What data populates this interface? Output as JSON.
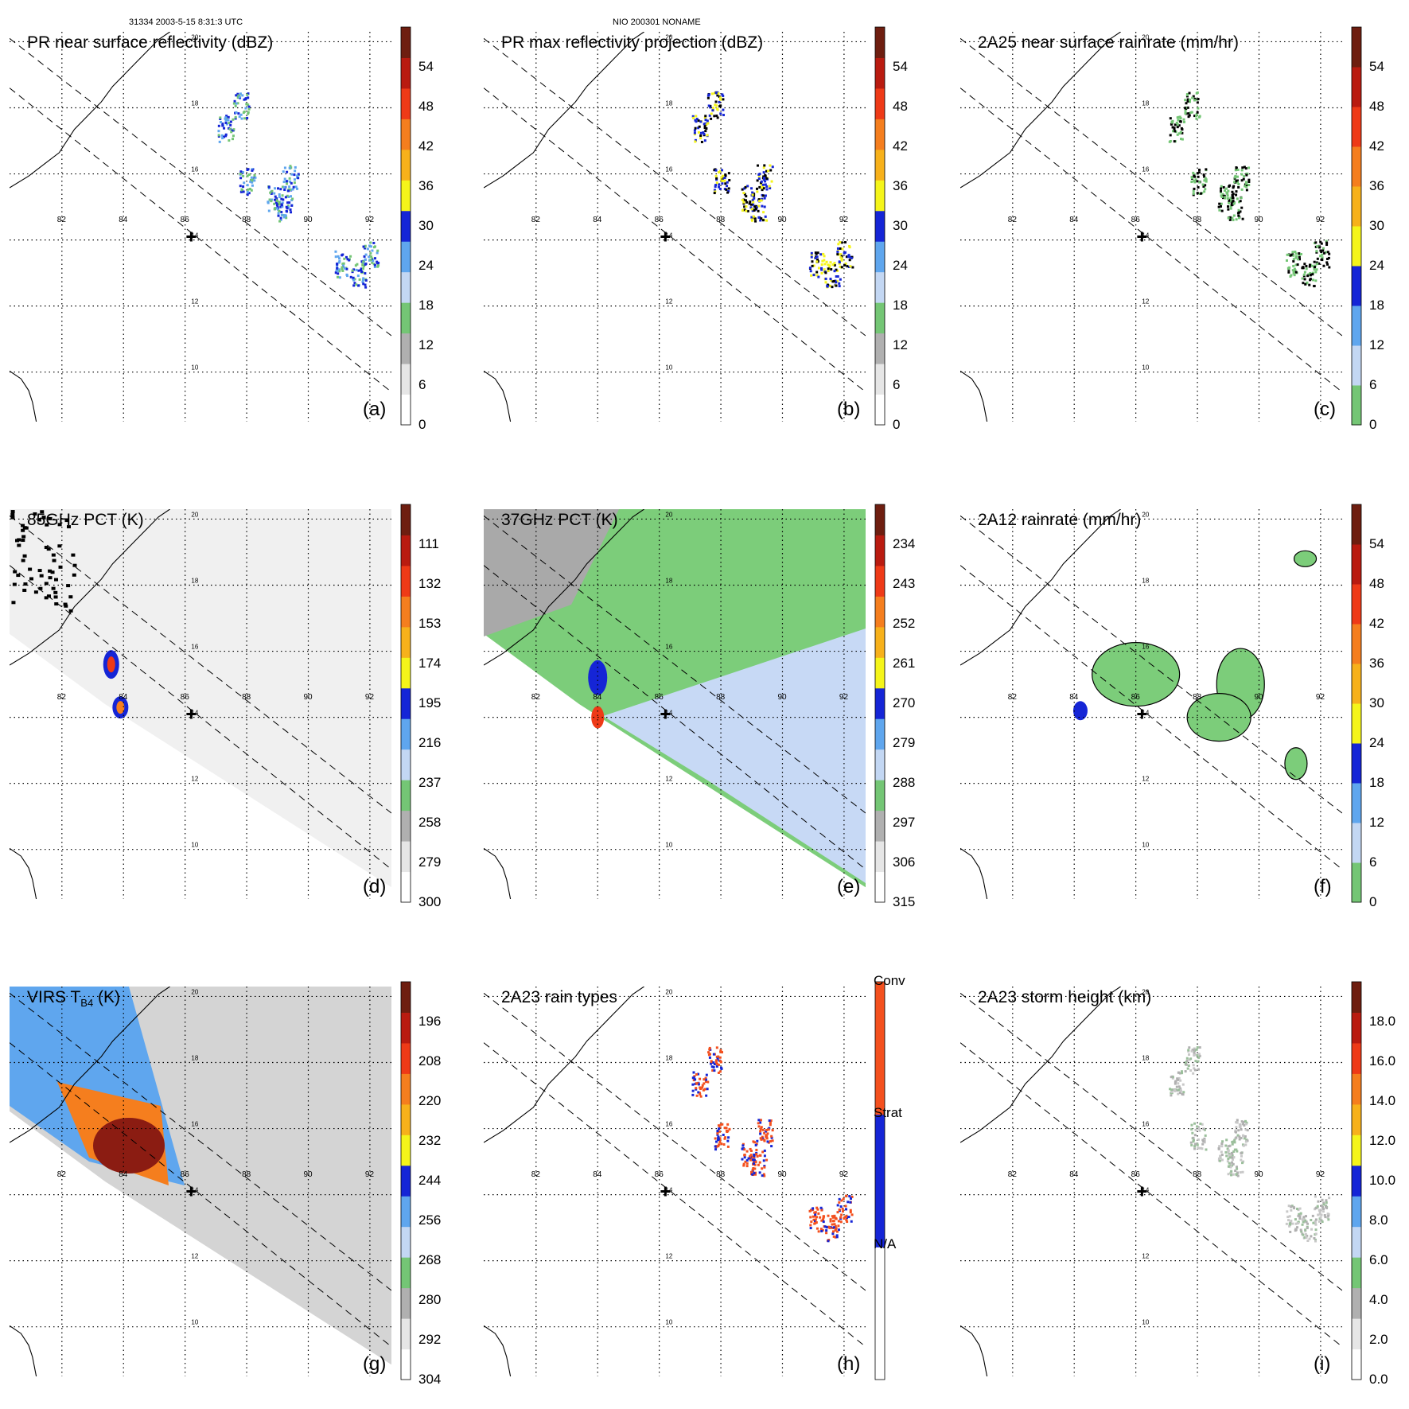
{
  "header": {
    "orbit_time": "31334 2003-5-15 8:31:3 UTC",
    "storm_id": "NIO 200301 NONAME"
  },
  "map": {
    "lon_labels": [
      "82",
      "84",
      "86",
      "88",
      "90",
      "92"
    ],
    "lat_labels": [
      "20",
      "18",
      "16",
      "14",
      "12",
      "10"
    ],
    "lon_ticks": [
      82,
      84,
      86,
      88,
      90,
      92
    ],
    "lat_ticks": [
      20,
      18,
      16,
      14,
      12,
      10
    ],
    "lon_range": [
      80.3,
      92.7
    ],
    "lat_range": [
      8.5,
      20.3
    ],
    "storm_center": {
      "lon": 86.2,
      "lat": 14.1,
      "label": "storm-center-cross"
    },
    "swath_edges": [
      [
        [
          80.3,
          20.1
        ],
        [
          92.7,
          11.1
        ]
      ],
      [
        [
          80.3,
          18.6
        ],
        [
          92.7,
          9.4
        ]
      ]
    ]
  },
  "panels": [
    {
      "id": "a",
      "letter": "(a)",
      "title": "PR near surface reflectivity (dBZ)",
      "colorbar": {
        "labels": [
          "0",
          "6",
          "12",
          "18",
          "24",
          "30",
          "36",
          "42",
          "48",
          "54"
        ],
        "colors": [
          "#ffffff",
          "#e6e6e6",
          "#b0b0b0",
          "#74c675",
          "#c3d7f3",
          "#5fa6ee",
          "#1525d6",
          "#f5f51a",
          "#f7b11b",
          "#f57e1e",
          "#ee3a17",
          "#b91b10",
          "#6e1e10"
        ]
      }
    },
    {
      "id": "b",
      "letter": "(b)",
      "title": "PR max reflectivity projection (dBZ)",
      "colorbar": {
        "labels": [
          "0",
          "6",
          "12",
          "18",
          "24",
          "30",
          "36",
          "42",
          "48",
          "54"
        ],
        "colors": [
          "#ffffff",
          "#e6e6e6",
          "#b0b0b0",
          "#74c675",
          "#c3d7f3",
          "#5fa6ee",
          "#1525d6",
          "#f5f51a",
          "#f7b11b",
          "#f57e1e",
          "#ee3a17",
          "#b91b10",
          "#6e1e10"
        ]
      }
    },
    {
      "id": "c",
      "letter": "(c)",
      "title": "2A25 near surface rainrate (mm/hr)",
      "colorbar": {
        "labels": [
          "0",
          "6",
          "12",
          "18",
          "24",
          "30",
          "36",
          "42",
          "48",
          "54"
        ],
        "colors": [
          "#74c675",
          "#c3d7f3",
          "#5fa6ee",
          "#1525d6",
          "#f5f51a",
          "#f7b11b",
          "#f57e1e",
          "#ee3a17",
          "#b91b10",
          "#6e1e10"
        ]
      }
    },
    {
      "id": "d",
      "letter": "(d)",
      "title": "85GHz PCT (K)",
      "colorbar": {
        "labels": [
          "300",
          "279",
          "258",
          "237",
          "216",
          "195",
          "174",
          "153",
          "132",
          "111"
        ],
        "colors": [
          "#ffffff",
          "#e6e6e6",
          "#b0b0b0",
          "#74c675",
          "#c3d7f3",
          "#5fa6ee",
          "#1525d6",
          "#f5f51a",
          "#f7b11b",
          "#f57e1e",
          "#ee3a17",
          "#b91b10",
          "#6e1e10"
        ]
      }
    },
    {
      "id": "e",
      "letter": "(e)",
      "title": "37GHz PCT (K)",
      "colorbar": {
        "labels": [
          "315",
          "306",
          "297",
          "288",
          "279",
          "270",
          "261",
          "252",
          "243",
          "234"
        ],
        "colors": [
          "#ffffff",
          "#e6e6e6",
          "#b0b0b0",
          "#74c675",
          "#c3d7f3",
          "#5fa6ee",
          "#1525d6",
          "#f5f51a",
          "#f7b11b",
          "#f57e1e",
          "#ee3a17",
          "#b91b10",
          "#6e1e10"
        ]
      }
    },
    {
      "id": "f",
      "letter": "(f)",
      "title": "2A12 rainrate (mm/hr)",
      "colorbar": {
        "labels": [
          "0",
          "6",
          "12",
          "18",
          "24",
          "30",
          "36",
          "42",
          "48",
          "54"
        ],
        "colors": [
          "#74c675",
          "#c3d7f3",
          "#5fa6ee",
          "#1525d6",
          "#f5f51a",
          "#f7b11b",
          "#f57e1e",
          "#ee3a17",
          "#b91b10",
          "#6e1e10"
        ]
      }
    },
    {
      "id": "g",
      "letter": "(g)",
      "title": "VIRS T",
      "title_sub": "B4",
      "title_suffix": " (K)",
      "colorbar": {
        "labels": [
          "304",
          "292",
          "280",
          "268",
          "256",
          "244",
          "232",
          "220",
          "208",
          "196"
        ],
        "colors": [
          "#ffffff",
          "#e6e6e6",
          "#b0b0b0",
          "#74c675",
          "#c3d7f3",
          "#5fa6ee",
          "#1525d6",
          "#f5f51a",
          "#f7b11b",
          "#f57e1e",
          "#ee3a17",
          "#b91b10",
          "#6e1e10"
        ]
      }
    },
    {
      "id": "h",
      "letter": "(h)",
      "title": "2A23 rain types",
      "colorbar": {
        "labels": [
          "N/A",
          "Strat",
          "Conv"
        ],
        "colors": [
          "#ffffff",
          "#1525d6",
          "#f4501e"
        ]
      }
    },
    {
      "id": "i",
      "letter": "(i)",
      "title": "2A23 storm height (km)",
      "colorbar": {
        "labels": [
          "0.0",
          "2.0",
          "4.0",
          "6.0",
          "8.0",
          "10.0",
          "12.0",
          "14.0",
          "16.0",
          "18.0"
        ],
        "colors": [
          "#ffffff",
          "#e6e6e6",
          "#b0b0b0",
          "#74c675",
          "#c3d7f3",
          "#5fa6ee",
          "#1525d6",
          "#f5f51a",
          "#f7b11b",
          "#f57e1e",
          "#ee3a17",
          "#b91b10",
          "#6e1e10"
        ]
      }
    }
  ]
}
